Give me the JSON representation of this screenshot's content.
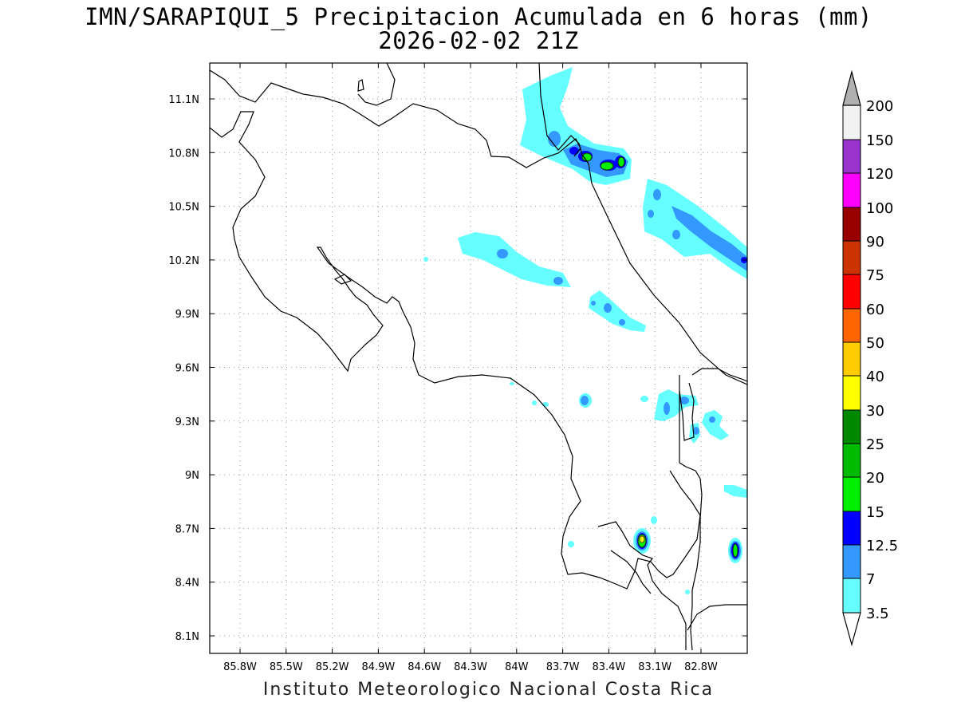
{
  "title": {
    "line1": "IMN/SARAPIQUI_5 Precipitacion Acumulada en 6 horas (mm)",
    "line2": "2026-02-02 21Z"
  },
  "credit": "Instituto Meteorologico Nacional Costa Rica",
  "map": {
    "lon_range": [
      -86.0,
      -83.0
    ],
    "lat_range": [
      8.0,
      11.3
    ],
    "lon_ticks": [
      "85.8W",
      "85.5W",
      "85.2W",
      "84.9W",
      "84.6W",
      "84.3W",
      "84W",
      "83.7W",
      "83.4W",
      "83.1W",
      "82.8W"
    ],
    "lat_ticks": [
      "11.1N",
      "10.8N",
      "10.5N",
      "10.2N",
      "9.9N",
      "9.6N",
      "9.3N",
      "9N",
      "8.7N",
      "8.4N",
      "8.1N"
    ],
    "gridlines": true
  },
  "colorbar": {
    "labels": [
      "3.5",
      "7",
      "12.5",
      "15",
      "20",
      "25",
      "30",
      "40",
      "50",
      "60",
      "75",
      "90",
      "100",
      "120",
      "150",
      "200"
    ],
    "colors": [
      "#66ffff",
      "#3399ff",
      "#0000ff",
      "#00ee00",
      "#00bb00",
      "#008800",
      "#ffff00",
      "#ffcc00",
      "#ff6600",
      "#ff0000",
      "#cc3300",
      "#990000",
      "#ff00ff",
      "#9933cc",
      "#f2f2f2",
      "#b0b0b0"
    ]
  }
}
